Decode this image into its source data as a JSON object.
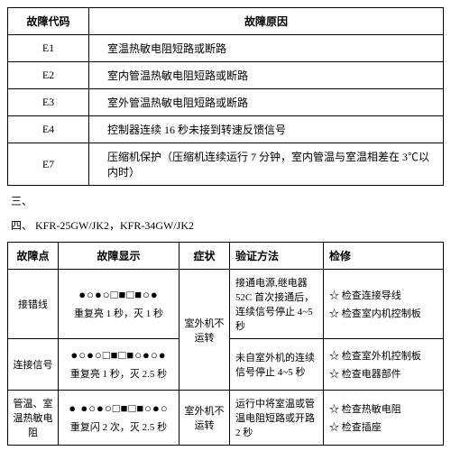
{
  "table1": {
    "header_code": "故障代码",
    "header_reason": "故障原因",
    "rows": [
      {
        "code": "E1",
        "reason": "室温热敏电阻短路或断路"
      },
      {
        "code": "E2",
        "reason": "室内管温热敏电阻短路或断路"
      },
      {
        "code": "E3",
        "reason": "室外管温热敏电阻短路或断路"
      },
      {
        "code": "E4",
        "reason": "控制器连续 16 秒未接到转速反馈信号"
      },
      {
        "code": "E7",
        "reason": "压缩机保护（压缩机连续运行 7 分钟，室内管温与室温相差在 3℃以内时）"
      }
    ]
  },
  "section3": "三、",
  "section4": "四、 KFR-25GW/JK2，KFR-34GW/JK2",
  "table2": {
    "headers": {
      "point": "故障点",
      "display": "故障显示",
      "symptom": "症状",
      "verify": "验证方法",
      "repair": "检修"
    },
    "rows": [
      {
        "point": "接错线",
        "dots": "●○●○□■□■○●",
        "disp_text": "重复亮 1 秒，灭 1 秒",
        "symptom": "室外机不运转",
        "verify": "接通电源,继电器 52C 首次接通后，连续信号停止 4~5 秒",
        "repair": [
          "☆ 检查连接导线",
          "☆ 检查室内机控制板"
        ]
      },
      {
        "point": "连接信号",
        "dots": "●○●○□■□■○●○●",
        "disp_text": "重复亮 1 秒，灭 2.5 秒",
        "symptom": "",
        "verify": "未自室外机的连续信号停止 4~5 秒",
        "repair": [
          "☆ 检查室外机控制板",
          "☆ 检查电器部件"
        ]
      },
      {
        "point": "管温、室温热敏电阻",
        "dots": "●  ●○●○□■□■○●○",
        "disp_text": "重复闪 2 次，灭 2.5 秒",
        "symptom": "室外机不运转",
        "verify": "运行中将室温或管温电阻短路或开路 2 秒",
        "repair": [
          "☆ 检查热敏电阻",
          "☆ 检查插座"
        ]
      }
    ]
  }
}
